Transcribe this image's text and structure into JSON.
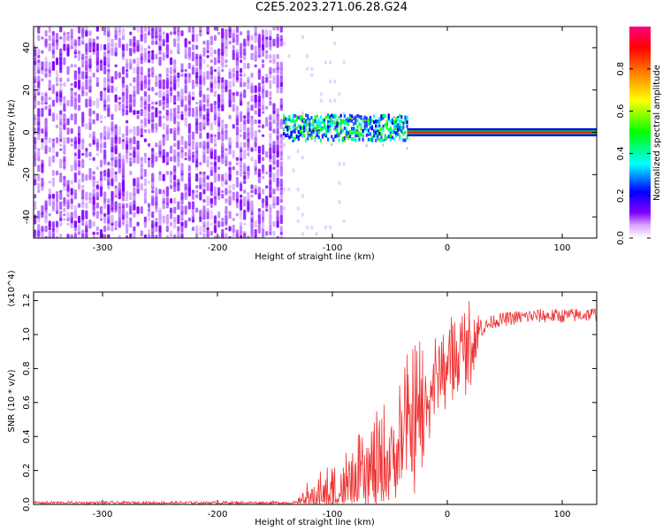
{
  "title": "C2E5.2023.271.06.28.G24",
  "chart_data": [
    {
      "type": "heatmap",
      "xlabel": "Height of straight line (km)",
      "ylabel": "Frequency (Hz)",
      "xlim": [
        -360,
        130
      ],
      "ylim": [
        -50,
        50
      ],
      "xticks": [
        -300,
        -200,
        -100,
        0,
        100
      ],
      "yticks": [
        -40,
        -20,
        0,
        20,
        40
      ],
      "colorbar": {
        "label": "Normalized spectral amplitude",
        "range": [
          0.0,
          1.0
        ],
        "ticks": [
          "0.0",
          "0.2",
          "0.4",
          "0.6",
          "0.8"
        ],
        "colors": [
          "#ffffff",
          "#c78cff",
          "#8000ff",
          "#0000ff",
          "#00ffff",
          "#00ff00",
          "#ffff00",
          "#ff8000",
          "#ff0000",
          "#ff0080"
        ]
      },
      "regions": [
        {
          "x_range": [
            -360,
            -143
          ],
          "frequency_range": [
            -50,
            50
          ],
          "amplitude": "noise, about 0.0-0.15"
        },
        {
          "x_range": [
            -143,
            -35
          ],
          "center_frequency": 2,
          "half_width": 6,
          "amplitude": "about 0.3-0.6"
        },
        {
          "x_range": [
            -35,
            130
          ],
          "center_frequency": 0,
          "half_width": 1.5,
          "amplitude": "about 0.8-1.0"
        }
      ]
    },
    {
      "type": "line",
      "xlabel": "Height of straight line (km)",
      "ylabel": "SNR (10 * v/v)",
      "y_multiplier": "(x10^4)",
      "xlim": [
        -360,
        130
      ],
      "ylim": [
        0,
        1.25
      ],
      "xticks": [
        -300,
        -200,
        -100,
        0,
        100
      ],
      "yticks": [
        "0.0",
        "0.2",
        "0.4",
        "0.6",
        "0.8",
        "1.0",
        "1.2"
      ],
      "color": "#ee3333",
      "x": [
        -360,
        -300,
        -200,
        -130,
        -120,
        -100,
        -80,
        -60,
        -50,
        -40,
        -30,
        -20,
        -10,
        0,
        10,
        20,
        30,
        40,
        60,
        80,
        100,
        130
      ],
      "y": [
        0.01,
        0.01,
        0.01,
        0.01,
        0.03,
        0.06,
        0.1,
        0.18,
        0.25,
        0.35,
        0.45,
        0.55,
        0.75,
        0.82,
        0.88,
        0.95,
        1.03,
        1.08,
        1.1,
        1.11,
        1.11,
        1.12
      ]
    }
  ]
}
